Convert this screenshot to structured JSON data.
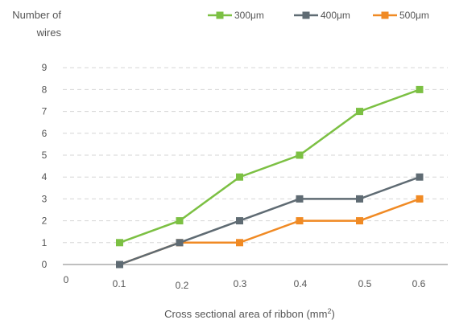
{
  "chart_data": {
    "type": "line",
    "ylabel_lines": [
      "Number of",
      "wires"
    ],
    "xlabel_main": "Cross sectional area of ribbon (mm",
    "xlabel_sup": "2",
    "xlabel_close": ")",
    "x_ticks": [
      "0",
      "0.1",
      "0.2",
      "0.3",
      "0.4",
      "0.5",
      "0.6"
    ],
    "y_ticks": [
      "0",
      "1",
      "2",
      "3",
      "4",
      "5",
      "6",
      "7",
      "8",
      "9"
    ],
    "x": [
      0.1,
      0.2,
      0.3,
      0.4,
      0.5,
      0.6
    ],
    "xlim": [
      0,
      0.6
    ],
    "ylim": [
      0,
      9
    ],
    "grid": "horizontal-dashed",
    "legend_position": "top-right",
    "series": [
      {
        "name": "300μm",
        "color": "#7cc043",
        "values": [
          1,
          2,
          4,
          5,
          7,
          8
        ]
      },
      {
        "name": "400μm",
        "color": "#5f6b73",
        "values": [
          0,
          1,
          2,
          3,
          3,
          4
        ]
      },
      {
        "name": "500μm",
        "color": "#f08a24",
        "values": [
          0,
          1,
          1,
          2,
          2,
          3
        ]
      }
    ]
  }
}
